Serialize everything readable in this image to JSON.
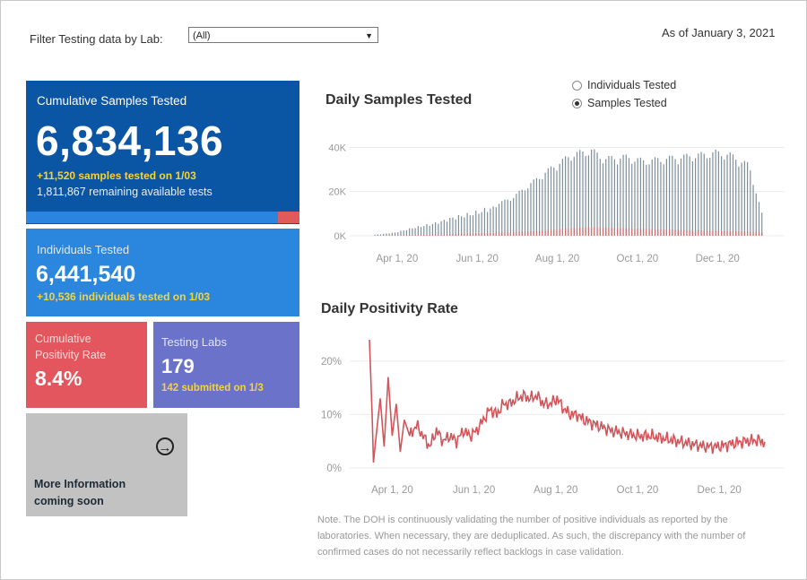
{
  "filter": {
    "label": "Filter Testing data by Lab:",
    "selected": "(All)"
  },
  "as_of": "As of January 3, 2021",
  "cumulative_samples": {
    "title": "Cumulative Samples Tested",
    "value": "6,834,136",
    "daily": "+11,520 samples tested on 1/03",
    "remaining": "1,811,867 remaining available tests",
    "bar_fraction_red": 0.08
  },
  "individuals": {
    "title": "Individuals Tested",
    "value": "6,441,540",
    "daily": "+10,536  individuals  tested on 1/03"
  },
  "positivity": {
    "title_line1": "Cumulative",
    "title_line2": "Positivity Rate",
    "value": "8.4%"
  },
  "labs": {
    "title": "Testing Labs",
    "value": "179",
    "submitted": "142 submitted on 1/3"
  },
  "more_info": {
    "line1": "More Information",
    "line2": "coming soon",
    "icon": "arrow-right-circle-icon"
  },
  "toggle": {
    "options": [
      "Individuals Tested",
      "Samples Tested"
    ],
    "selected": "Samples Tested"
  },
  "note": "Note. The DOH is continuously validating the number of positive individuals as reported by the laboratories. When necessary, they are deduplicated. As such, the discrepancy with the number of confirmed cases do not necessarily reflect backlogs in case validation.",
  "colors": {
    "blue_dark": "#0b56a4",
    "blue": "#2b87dd",
    "red": "#e4565e",
    "purple": "#6a72c9",
    "bars": "#7d8e9c",
    "positive": "#d66a6a",
    "line": "#d2555a"
  },
  "chart_data": [
    {
      "type": "bar",
      "title": "Daily Samples Tested",
      "x_ticks": [
        "Apr 1, 20",
        "Jun 1, 20",
        "Aug 1, 20",
        "Oct 1, 20",
        "Dec 1, 20"
      ],
      "y_ticks": [
        "0K",
        "20K",
        "40K"
      ],
      "ylim": [
        0,
        45000
      ],
      "xrange": [
        "2020-03-15",
        "2021-01-03"
      ],
      "series": [
        {
          "name": "Samples Tested",
          "key_points": [
            [
              0,
              500
            ],
            [
              15,
              1500
            ],
            [
              30,
              4000
            ],
            [
              45,
              6000
            ],
            [
              60,
              9000
            ],
            [
              75,
              11000
            ],
            [
              90,
              14000
            ],
            [
              105,
              18000
            ],
            [
              120,
              25000
            ],
            [
              135,
              32000
            ],
            [
              150,
              38000
            ],
            [
              165,
              40000
            ],
            [
              175,
              36000
            ],
            [
              190,
              37000
            ],
            [
              205,
              35000
            ],
            [
              220,
              36000
            ],
            [
              235,
              37000
            ],
            [
              250,
              38000
            ],
            [
              260,
              39000
            ],
            [
              270,
              38000
            ],
            [
              285,
              33000
            ],
            [
              295,
              10000
            ]
          ]
        },
        {
          "name": "Positive",
          "key_points": [
            [
              0,
              0
            ],
            [
              60,
              700
            ],
            [
              120,
              2000
            ],
            [
              150,
              3500
            ],
            [
              165,
              4000
            ],
            [
              200,
              3200
            ],
            [
              240,
              2500
            ],
            [
              270,
              2100
            ],
            [
              295,
              1500
            ]
          ]
        }
      ]
    },
    {
      "type": "line",
      "title": "Daily Positivity Rate",
      "x_ticks": [
        "Apr 1, 20",
        "Jun 1, 20",
        "Aug 1, 20",
        "Oct 1, 20",
        "Dec 1, 20"
      ],
      "y_ticks": [
        "0%",
        "10%",
        "20%"
      ],
      "ylim": [
        0,
        25
      ],
      "xrange": [
        "2020-03-15",
        "2021-01-03"
      ],
      "series": [
        {
          "name": "Positivity Rate",
          "key_points": [
            [
              0,
              24
            ],
            [
              2,
              10
            ],
            [
              3,
              1
            ],
            [
              5,
              6
            ],
            [
              8,
              13
            ],
            [
              11,
              4
            ],
            [
              14,
              17
            ],
            [
              17,
              6
            ],
            [
              20,
              12
            ],
            [
              23,
              3
            ],
            [
              26,
              9
            ],
            [
              30,
              6
            ],
            [
              35,
              8
            ],
            [
              40,
              6
            ],
            [
              45,
              4
            ],
            [
              50,
              7
            ],
            [
              55,
              5
            ],
            [
              60,
              6
            ],
            [
              65,
              5
            ],
            [
              70,
              7
            ],
            [
              75,
              6
            ],
            [
              80,
              7
            ],
            [
              85,
              9
            ],
            [
              90,
              11
            ],
            [
              95,
              10
            ],
            [
              100,
              12
            ],
            [
              105,
              12
            ],
            [
              110,
              13
            ],
            [
              115,
              13.5
            ],
            [
              120,
              13
            ],
            [
              125,
              13.5
            ],
            [
              130,
              12
            ],
            [
              135,
              12
            ],
            [
              140,
              13
            ],
            [
              145,
              11
            ],
            [
              150,
              10
            ],
            [
              155,
              10
            ],
            [
              160,
              9
            ],
            [
              170,
              8
            ],
            [
              180,
              7
            ],
            [
              190,
              6.5
            ],
            [
              200,
              6
            ],
            [
              210,
              6
            ],
            [
              220,
              5.5
            ],
            [
              230,
              5
            ],
            [
              240,
              4.5
            ],
            [
              250,
              4
            ],
            [
              260,
              4
            ],
            [
              270,
              4.5
            ],
            [
              280,
              5
            ],
            [
              290,
              5.2
            ],
            [
              295,
              4.8
            ]
          ]
        }
      ]
    }
  ]
}
